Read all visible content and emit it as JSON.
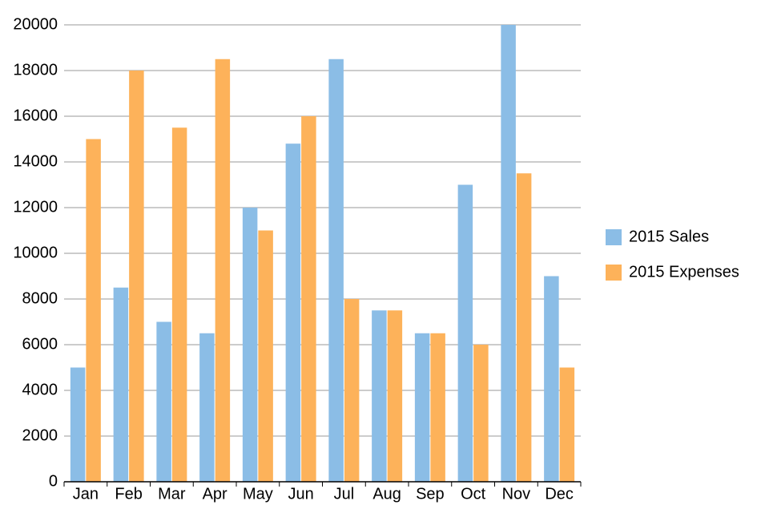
{
  "chart_data": {
    "type": "bar",
    "categories": [
      "Jan",
      "Feb",
      "Mar",
      "Apr",
      "May",
      "Jun",
      "Jul",
      "Aug",
      "Sep",
      "Oct",
      "Nov",
      "Dec"
    ],
    "series": [
      {
        "name": "2015 Sales",
        "color": "#8bbde6",
        "values": [
          5000,
          8500,
          7000,
          6500,
          12000,
          14800,
          18500,
          7500,
          6500,
          13000,
          20000,
          9000
        ]
      },
      {
        "name": "2015 Expenses",
        "color": "#fdb25a",
        "values": [
          15000,
          18000,
          15500,
          18500,
          11000,
          16000,
          8000,
          7500,
          6500,
          6000,
          13500,
          5000
        ]
      }
    ],
    "ylim": [
      0,
      20000
    ],
    "yticks": [
      0,
      2000,
      4000,
      6000,
      8000,
      10000,
      12000,
      14000,
      16000,
      18000,
      20000
    ],
    "grid": true,
    "legend": "right"
  }
}
